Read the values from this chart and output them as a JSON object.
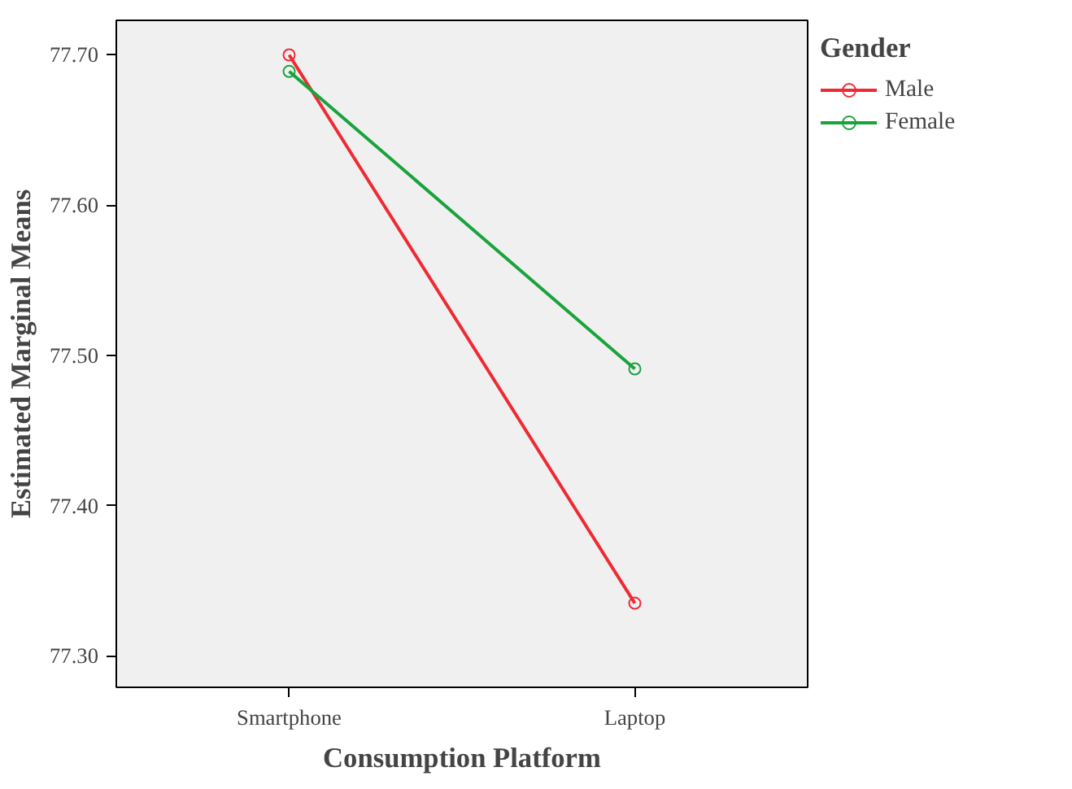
{
  "chart_data": {
    "type": "line",
    "xlabel": "Consumption Platform",
    "ylabel": "Estimated Marginal Means",
    "legend_title": "Gender",
    "categories": [
      "Smartphone",
      "Laptop"
    ],
    "series": [
      {
        "name": "Male",
        "color": "#ee2b34",
        "values": [
          77.7,
          77.335
        ]
      },
      {
        "name": "Female",
        "color": "#1aa33c",
        "values": [
          77.689,
          77.491
        ]
      }
    ],
    "ylim": [
      77.279,
      77.723
    ],
    "yticks": [
      {
        "value": 77.3,
        "label": "77.30"
      },
      {
        "value": 77.4,
        "label": "77.40"
      },
      {
        "value": 77.5,
        "label": "77.50"
      },
      {
        "value": 77.6,
        "label": "77.60"
      },
      {
        "value": 77.7,
        "label": "77.70"
      }
    ],
    "grid": false,
    "legend": "top right",
    "marker": "circle"
  }
}
